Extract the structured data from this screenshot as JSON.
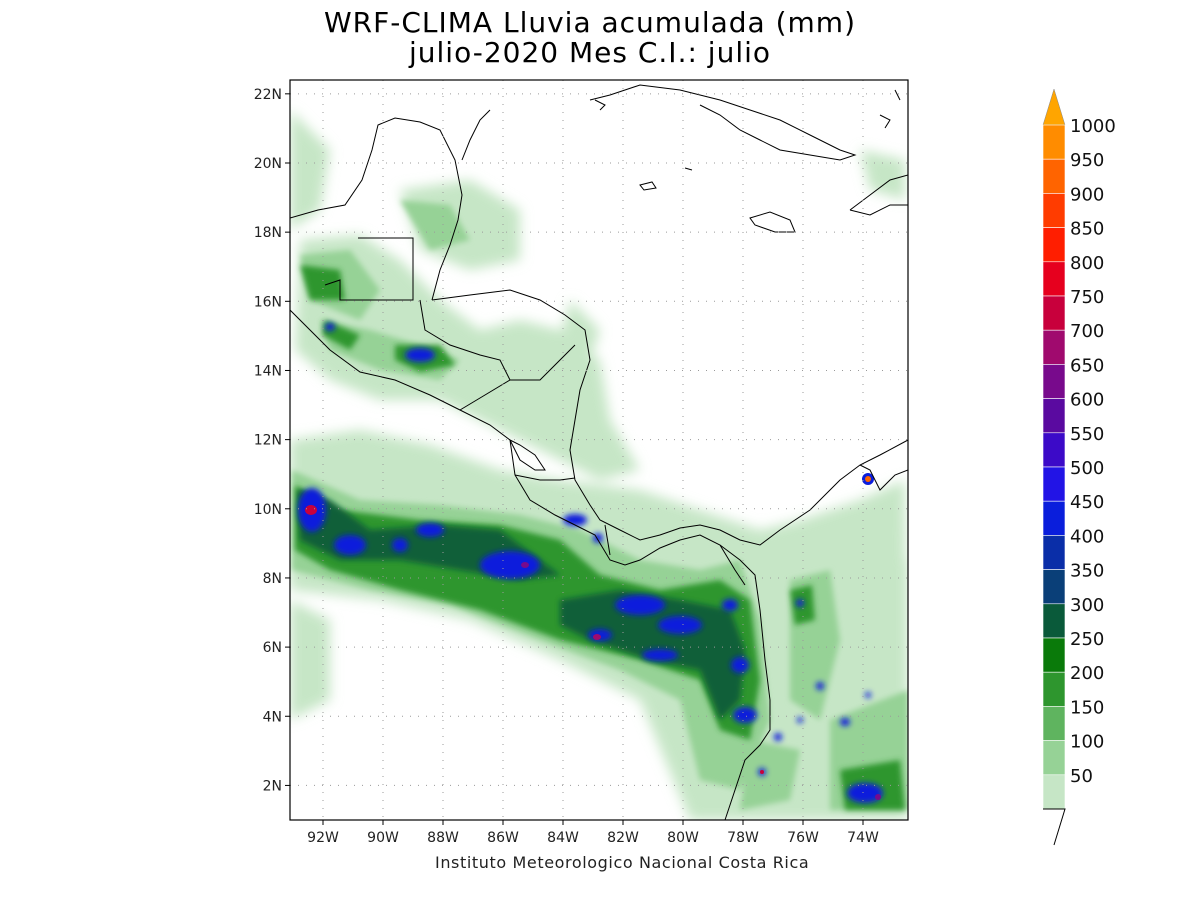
{
  "title": {
    "line1": "WRF-CLIMA Lluvia acumulada (mm)",
    "line2": "julio-2020 Mes C.I.: julio"
  },
  "credit": "Instituto Meteorologico Nacional Costa Rica",
  "map": {
    "lon_range": [
      -93.1,
      -72.5
    ],
    "lat_range": [
      1.0,
      22.4
    ],
    "lat_ticks": [
      {
        "value": 2,
        "label": "2N"
      },
      {
        "value": 4,
        "label": "4N"
      },
      {
        "value": 6,
        "label": "6N"
      },
      {
        "value": 8,
        "label": "8N"
      },
      {
        "value": 10,
        "label": "10N"
      },
      {
        "value": 12,
        "label": "12N"
      },
      {
        "value": 14,
        "label": "14N"
      },
      {
        "value": 16,
        "label": "16N"
      },
      {
        "value": 18,
        "label": "18N"
      },
      {
        "value": 20,
        "label": "20N"
      },
      {
        "value": 22,
        "label": "22N"
      }
    ],
    "lon_ticks": [
      {
        "value": -92,
        "label": "92W"
      },
      {
        "value": -90,
        "label": "90W"
      },
      {
        "value": -88,
        "label": "88W"
      },
      {
        "value": -86,
        "label": "86W"
      },
      {
        "value": -84,
        "label": "84W"
      },
      {
        "value": -82,
        "label": "82W"
      },
      {
        "value": -80,
        "label": "80W"
      },
      {
        "value": -78,
        "label": "78W"
      },
      {
        "value": -76,
        "label": "76W"
      },
      {
        "value": -74,
        "label": "74W"
      }
    ]
  },
  "colorbar": {
    "levels": [
      "50",
      "100",
      "150",
      "200",
      "250",
      "300",
      "350",
      "400",
      "450",
      "500",
      "550",
      "600",
      "650",
      "700",
      "750",
      "800",
      "850",
      "900",
      "950",
      "1000"
    ],
    "colors": [
      "#c6e6c6",
      "#96d296",
      "#5fb45f",
      "#2e962e",
      "#0a7a0a",
      "#0a5a3a",
      "#0a3f78",
      "#0a2ea8",
      "#0a1edc",
      "#2214e6",
      "#3c0ac8",
      "#5a0aa0",
      "#780a8c",
      "#a00a6e",
      "#c8003c",
      "#e6001e",
      "#ff1e00",
      "#ff3c00",
      "#ff6400",
      "#ff8c00"
    ],
    "top_color": "#ffa500"
  }
}
